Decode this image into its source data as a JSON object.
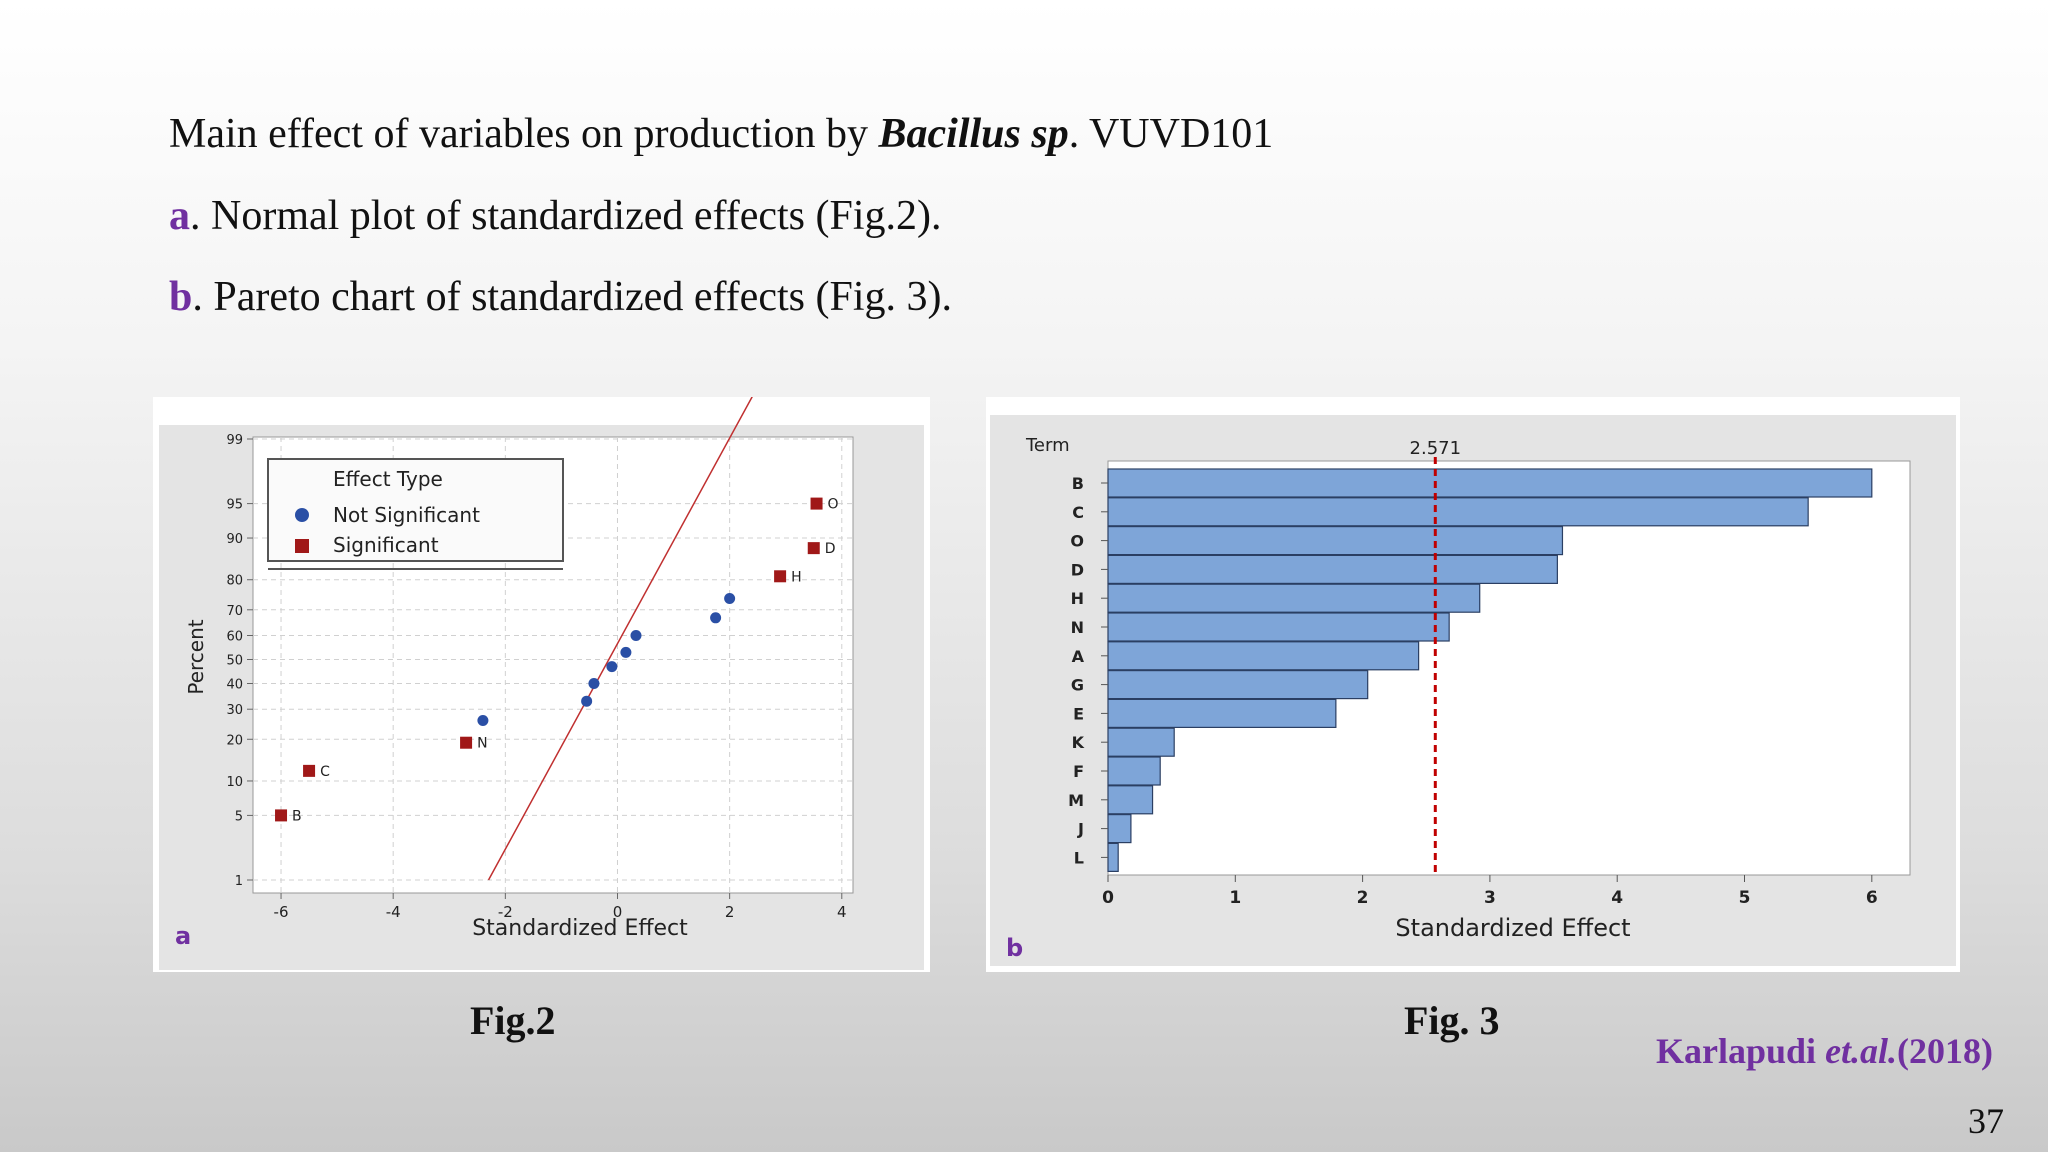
{
  "slide": {
    "title_pre": "Main effect of variables on production by ",
    "title_bold": "Bacillus sp",
    "title_post": ". VUVD101",
    "item_a_letter": "a",
    "item_a_text": ". Normal plot of standardized effects (Fig.2).",
    "item_b_letter": "b",
    "item_b_text": ". Pareto chart of standardized effects (Fig. 3).",
    "fig2_caption": "Fig.2",
    "fig3_caption": "Fig. 3",
    "citation_author": "Karlapudi ",
    "citation_etal": "et.al.",
    "citation_year": "(2018)",
    "page_number": "37"
  },
  "colors": {
    "purple": "#7030a0",
    "not_significant": "#2a4fa5",
    "significant": "#a01818",
    "bar_fill": "#7ea5d8",
    "reference_line": "#c00000"
  },
  "chart_data": [
    {
      "type": "scatter",
      "panel_label": "a",
      "xlabel": "Standardized Effect",
      "ylabel": "Percent",
      "y_scale": "normal-probability",
      "xlim": [
        -6.5,
        4.2
      ],
      "x_ticks": [
        "-6",
        "-4",
        "-2",
        "0",
        "2",
        "4"
      ],
      "y_ticks": [
        "1",
        "5",
        "10",
        "20",
        "30",
        "40",
        "50",
        "60",
        "70",
        "80",
        "90",
        "95",
        "99"
      ],
      "grid": true,
      "legend": {
        "title": "Effect Type",
        "placement": "top-left",
        "entries": [
          "Not Significant",
          "Significant"
        ]
      },
      "fit_line": {
        "x": [
          -2.3,
          2.5
        ],
        "y": [
          1,
          99.8
        ]
      },
      "series": [
        {
          "name": "Not Significant",
          "points": [
            {
              "x": -2.4,
              "y": 26
            },
            {
              "x": -0.55,
              "y": 33
            },
            {
              "x": -0.42,
              "y": 40
            },
            {
              "x": -0.1,
              "y": 47
            },
            {
              "x": 0.15,
              "y": 53
            },
            {
              "x": 0.33,
              "y": 60
            },
            {
              "x": 1.75,
              "y": 67
            },
            {
              "x": 2.0,
              "y": 74
            }
          ]
        },
        {
          "name": "Significant",
          "points": [
            {
              "x": -6.0,
              "y": 5,
              "label": "B"
            },
            {
              "x": -5.5,
              "y": 12,
              "label": "C"
            },
            {
              "x": -2.7,
              "y": 19,
              "label": "N"
            },
            {
              "x": 2.9,
              "y": 81,
              "label": "H"
            },
            {
              "x": 3.5,
              "y": 88,
              "label": "D"
            },
            {
              "x": 3.55,
              "y": 95,
              "label": "O"
            }
          ]
        }
      ]
    },
    {
      "type": "bar",
      "orientation": "horizontal",
      "panel_label": "b",
      "categories_label": "Term",
      "xlabel": "Standardized Effect",
      "xlim": [
        0,
        6.3
      ],
      "x_ticks": [
        "0",
        "1",
        "2",
        "3",
        "4",
        "5",
        "6"
      ],
      "reference_line": {
        "value": 2.571,
        "label": "2.571"
      },
      "categories": [
        "B",
        "C",
        "O",
        "D",
        "H",
        "N",
        "A",
        "G",
        "E",
        "K",
        "F",
        "M",
        "J",
        "L"
      ],
      "values": [
        6.0,
        5.5,
        3.57,
        3.53,
        2.92,
        2.68,
        2.44,
        2.04,
        1.79,
        0.52,
        0.41,
        0.35,
        0.18,
        0.08
      ]
    }
  ]
}
